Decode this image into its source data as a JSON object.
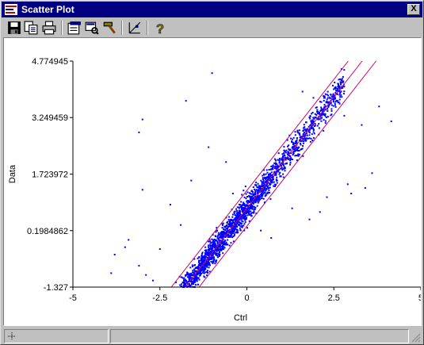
{
  "window": {
    "title": "Scatter Plot",
    "close_label": "X"
  },
  "toolbar": {
    "buttons": [
      {
        "name": "save-icon"
      },
      {
        "name": "copy-icon"
      },
      {
        "name": "print-icon"
      },
      {
        "name": "properties-icon"
      },
      {
        "name": "view-icon"
      },
      {
        "name": "hammer-icon"
      },
      {
        "name": "select-tool-icon"
      },
      {
        "name": "help-icon"
      }
    ]
  },
  "colors": {
    "points": "#0000ff",
    "fit_lines": "#cc0066",
    "titlebar": "#000080"
  },
  "chart_data": {
    "type": "scatter",
    "xlabel": "Ctrl",
    "ylabel": "Data",
    "xlim": [
      -5,
      5
    ],
    "ylim": [
      -1.327,
      4.774945
    ],
    "x_ticks": [
      "-5",
      "-2.5",
      "0",
      "2.5",
      "5"
    ],
    "y_ticks": [
      "-1.327",
      "0.1984862",
      "1.723972",
      "3.249459",
      "4.774945"
    ],
    "lines": [
      {
        "name": "upper",
        "slope": 1.2,
        "intercept": 1.28
      },
      {
        "name": "center",
        "slope": 1.2,
        "intercept": 0.8
      },
      {
        "name": "lower",
        "slope": 1.2,
        "intercept": 0.32
      }
    ],
    "main_cloud": {
      "x_range": [
        -3.0,
        3.0
      ],
      "slope": 1.2,
      "intercept": 0.8,
      "point_count": 2200
    },
    "outliers": [
      [
        -1.0,
        4.45
      ],
      [
        -1.75,
        3.7
      ],
      [
        -3.0,
        3.2
      ],
      [
        -3.1,
        2.85
      ],
      [
        -1.1,
        2.45
      ],
      [
        -0.6,
        2.05
      ],
      [
        1.6,
        3.95
      ],
      [
        2.8,
        3.3
      ],
      [
        3.3,
        3.05
      ],
      [
        3.8,
        3.55
      ],
      [
        4.15,
        3.15
      ],
      [
        2.3,
        1.1
      ],
      [
        3.0,
        1.2
      ],
      [
        2.9,
        1.45
      ],
      [
        3.4,
        1.35
      ],
      [
        -3.0,
        1.3
      ],
      [
        -2.2,
        0.9
      ],
      [
        -1.6,
        1.55
      ],
      [
        1.8,
        0.5
      ],
      [
        0.7,
        0.0
      ],
      [
        -3.5,
        -0.25
      ],
      [
        -3.8,
        -0.45
      ],
      [
        -3.1,
        -0.75
      ],
      [
        -2.7,
        -1.15
      ],
      [
        -2.9,
        -1.0
      ],
      [
        1.3,
        0.8
      ],
      [
        0.4,
        0.2
      ],
      [
        -1.9,
        0.35
      ],
      [
        -2.5,
        -0.3
      ],
      [
        3.6,
        1.75
      ],
      [
        -3.9,
        -0.95
      ],
      [
        -3.4,
        -0.05
      ],
      [
        2.1,
        0.7
      ],
      [
        1.0,
        1.9
      ],
      [
        -0.4,
        1.2
      ]
    ]
  }
}
